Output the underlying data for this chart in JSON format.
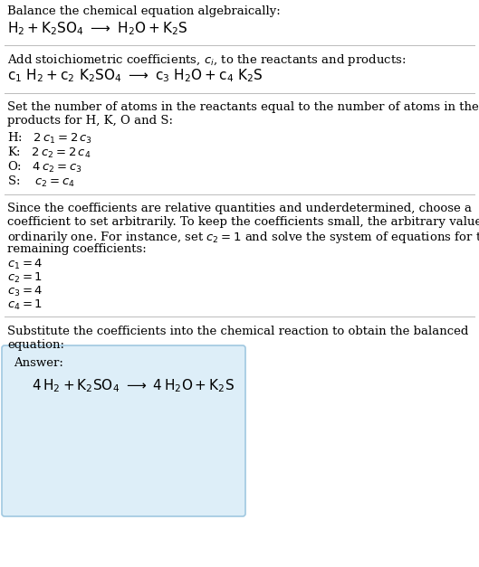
{
  "bg_color": "#ffffff",
  "box_facecolor": "#ddeef8",
  "box_edgecolor": "#a0c8e0",
  "sep_color": "#bbbbbb",
  "text_color": "#000000",
  "font_size": 9.5,
  "sections": {
    "s0_line1": "Balance the chemical equation algebraically:",
    "s0_line2": "$\\mathrm{H_2 + K_2SO_4 \\ {\\longrightarrow} \\ H_2O + K_2S}$",
    "s1_line1": "Add stoichiometric coefficients, $c_i$, to the reactants and products:",
    "s1_line2": "$\\mathrm{c_1\\ H_2 + c_2\\ K_2SO_4 \\ {\\longrightarrow} \\ c_3\\ H_2O + c_4\\ K_2S}$",
    "s2_line1": "Set the number of atoms in the reactants equal to the number of atoms in the",
    "s2_line2": "products for H, K, O and S:",
    "s2_eq1": "H:   $2\\,c_1 = 2\\,c_3$",
    "s2_eq2": "K:   $2\\,c_2 = 2\\,c_4$",
    "s2_eq3": "O:   $4\\,c_2 = c_3$",
    "s2_eq4": "S:    $c_2 = c_4$",
    "s3_line1": "Since the coefficients are relative quantities and underdetermined, choose a",
    "s3_line2": "coefficient to set arbitrarily. To keep the coefficients small, the arbitrary value is",
    "s3_line3": "ordinarily one. For instance, set $c_2 = 1$ and solve the system of equations for the",
    "s3_line4": "remaining coefficients:",
    "s3_c1": "$c_1 = 4$",
    "s3_c2": "$c_2 = 1$",
    "s3_c3": "$c_3 = 4$",
    "s3_c4": "$c_4 = 1$",
    "s4_line1": "Substitute the coefficients into the chemical reaction to obtain the balanced",
    "s4_line2": "equation:",
    "answer_label": "Answer:",
    "answer_eq": "$\\mathrm{4\\,H_2 + K_2SO_4 \\ {\\longrightarrow} \\ 4\\,H_2O + K_2S}$"
  }
}
